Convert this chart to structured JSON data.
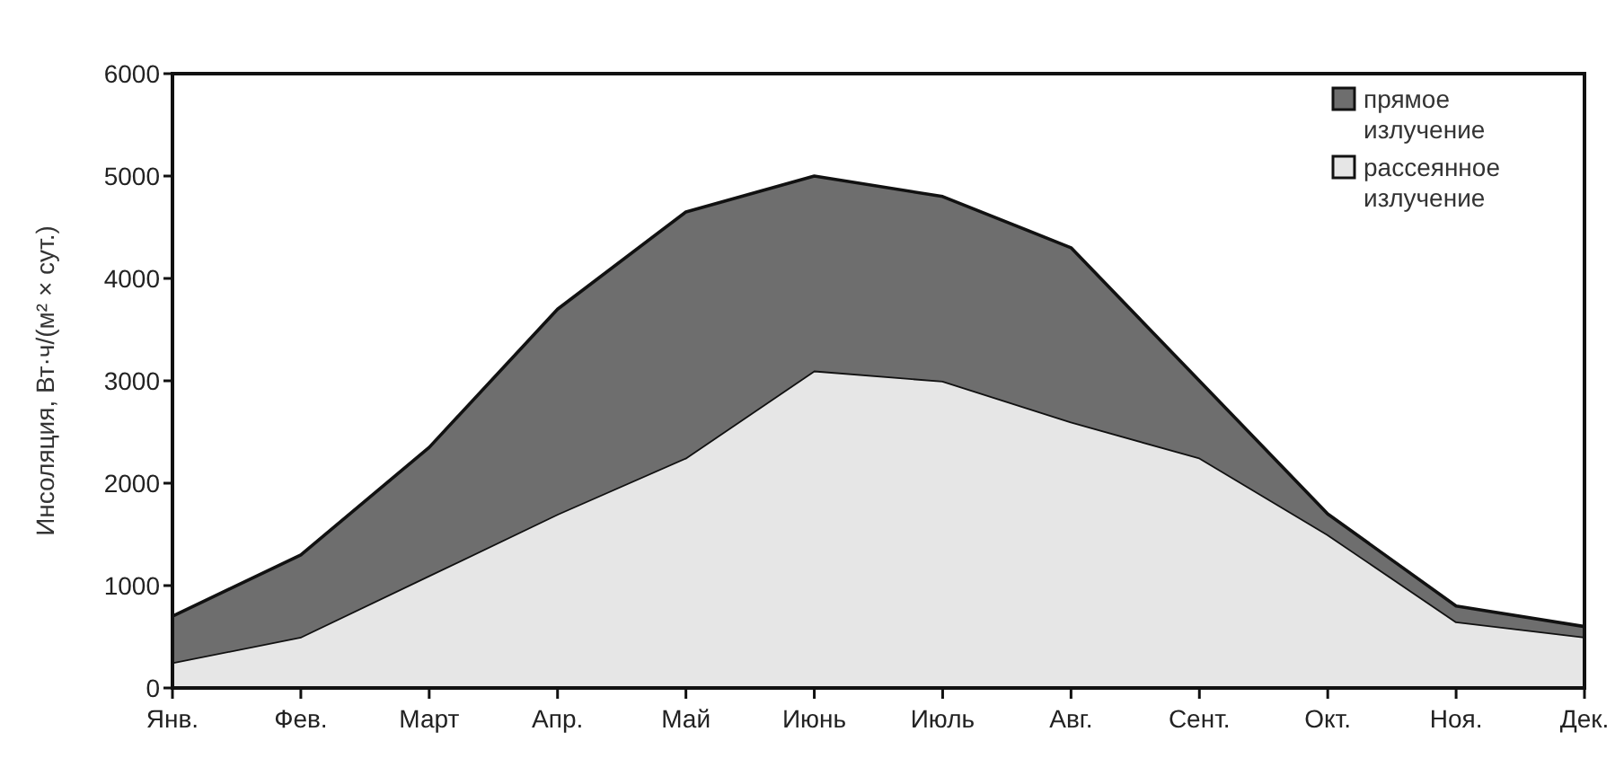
{
  "chart_data": {
    "type": "area",
    "stacked": true,
    "ylabel": "Инсоляция, Вт·ч/(м² × сут.)",
    "categories": [
      "Янв.",
      "Фев.",
      "Март",
      "Апр.",
      "Май",
      "Июнь",
      "Июль",
      "Авг.",
      "Сент.",
      "Окт.",
      "Ноя.",
      "Дек."
    ],
    "series": [
      {
        "name": "рассеянное излучение",
        "color": "#e6e6e6",
        "values": [
          250,
          500,
          1100,
          1700,
          2250,
          3100,
          3000,
          2600,
          2250,
          1500,
          650,
          500
        ]
      },
      {
        "name": "прямое излучение",
        "color": "#6e6e6e",
        "values": [
          450,
          800,
          1250,
          2000,
          2400,
          1900,
          1800,
          1700,
          750,
          200,
          150,
          100
        ]
      }
    ],
    "ylim": [
      0,
      6000
    ],
    "yticks": [
      0,
      1000,
      2000,
      3000,
      4000,
      5000,
      6000
    ],
    "grid": false,
    "legend": "top right"
  }
}
